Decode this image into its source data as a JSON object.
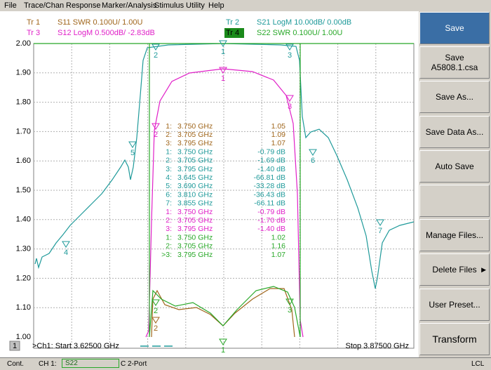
{
  "menu": [
    "File",
    "Trace/Chan",
    "Response",
    "Marker/Analysis",
    "Stimulus",
    "Utility",
    "Help"
  ],
  "traces": [
    {
      "label": "Tr 1",
      "text": "S11 SWR 0.100U/  1.00U",
      "color": "#a0661c"
    },
    {
      "label": "Tr 2",
      "text": "S21 LogM 10.00dB/  0.00dB",
      "color": "#1f9a9a"
    },
    {
      "label": "Tr 3",
      "text": "S12 LogM 0.500dB/  -2.83dB",
      "color": "#e020c8"
    },
    {
      "label": "Tr 4",
      "text": "S22 SWR 0.100U/  1.00U",
      "color": "#28a828"
    }
  ],
  "y_axis_labels": [
    "2.00",
    "1.90",
    "1.80",
    "1.70",
    "1.60",
    "1.50",
    "1.40",
    "1.30",
    "1.20",
    "1.10",
    "1.00"
  ],
  "markers": [
    {
      "id": "1:",
      "freq": "3.750 GHz",
      "value": "1.05",
      "trace": 0
    },
    {
      "id": "2:",
      "freq": "3.705 GHz",
      "value": "1.09",
      "trace": 0
    },
    {
      "id": "3:",
      "freq": "3.795 GHz",
      "value": "1.07",
      "trace": 0
    },
    {
      "id": "1:",
      "freq": "3.750 GHz",
      "value": "-0.79 dB",
      "trace": 1
    },
    {
      "id": "2:",
      "freq": "3.705 GHz",
      "value": "-1.69 dB",
      "trace": 1
    },
    {
      "id": "3:",
      "freq": "3.795 GHz",
      "value": "-1.40 dB",
      "trace": 1
    },
    {
      "id": "4:",
      "freq": "3.645 GHz",
      "value": "-66.81 dB",
      "trace": 1
    },
    {
      "id": "5:",
      "freq": "3.690 GHz",
      "value": "-33.28 dB",
      "trace": 1
    },
    {
      "id": "6:",
      "freq": "3.810 GHz",
      "value": "-36.43 dB",
      "trace": 1
    },
    {
      "id": "7:",
      "freq": "3.855 GHz",
      "value": "-66.11 dB",
      "trace": 1
    },
    {
      "id": "1:",
      "freq": "3.750 GHz",
      "value": "-0.79 dB",
      "trace": 2
    },
    {
      "id": "2:",
      "freq": "3.705 GHz",
      "value": "-1.70 dB",
      "trace": 2
    },
    {
      "id": "3:",
      "freq": "3.795 GHz",
      "value": "-1.40 dB",
      "trace": 2
    },
    {
      "id": "1:",
      "freq": "3.750 GHz",
      "value": "1.02",
      "trace": 3
    },
    {
      "id": "2:",
      "freq": "3.705 GHz",
      "value": "1.16",
      "trace": 3
    },
    {
      "id": ">3:",
      "freq": "3.795 GHz",
      "value": "1.07",
      "trace": 3
    }
  ],
  "plot_markers": [
    "1",
    "2",
    "3",
    "5",
    "6",
    "4",
    "7",
    "1",
    "2",
    "3",
    "2",
    "3",
    "2",
    "1"
  ],
  "channel_box": "1",
  "start": ">Ch1: Start  3.62500 GHz",
  "stop": "Stop  3.87500 GHz",
  "buttons": [
    "Save",
    "Save",
    "A5808.1.csa",
    "Save As...",
    "Save Data As...",
    "Auto Save",
    "Manage Files...",
    "Delete Files",
    "User Preset...",
    "Transform"
  ],
  "status": [
    "Cont.",
    "CH 1:",
    "S22",
    "C  2-Port",
    "LCL"
  ]
}
